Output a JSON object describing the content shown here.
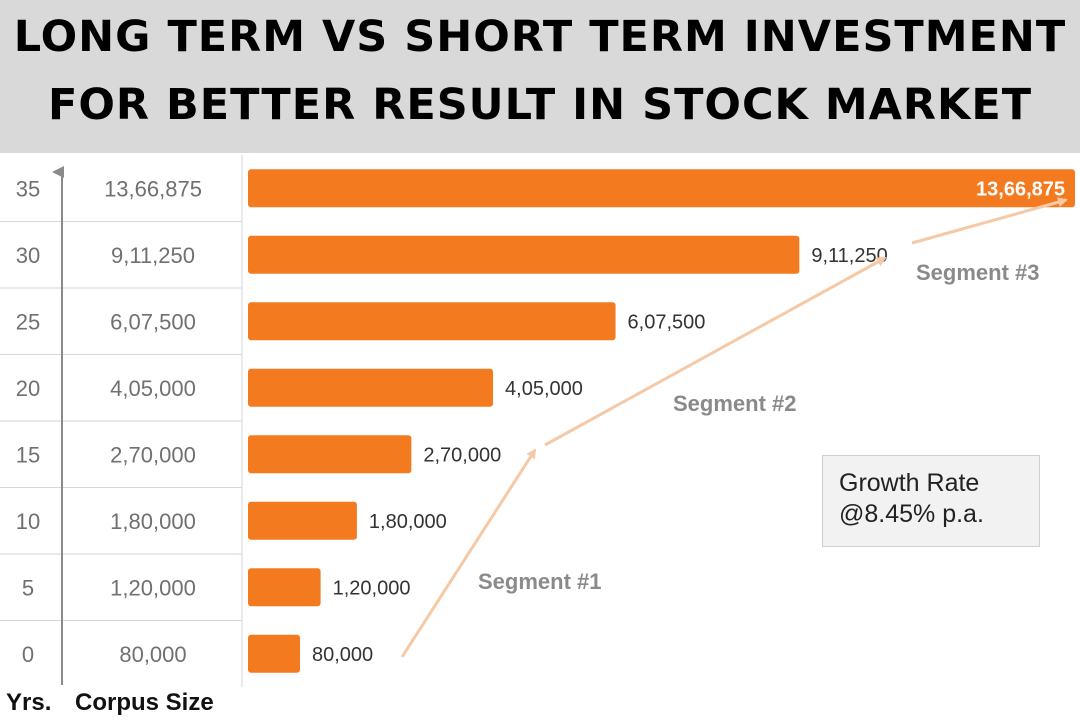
{
  "header": {
    "line1": "LONG TERM VS SHORT TERM INVESTMENT",
    "line2": "FOR BETTER RESULT IN STOCK MARKET"
  },
  "annotation": {
    "line1": "Growth Rate",
    "line2": "@8.45% p.a."
  },
  "colors": {
    "bar": "#f47a20",
    "arrow": "#f6c9a6",
    "banner": "#d9d9d9"
  },
  "chart_data": {
    "type": "bar",
    "orientation": "horizontal",
    "categories": [
      "35",
      "30",
      "25",
      "20",
      "15",
      "10",
      "5",
      "0"
    ],
    "corpus_labels": [
      "13,66,875",
      "9,11,250",
      "6,07,500",
      "4,05,000",
      "2,70,000",
      "1,80,000",
      "1,20,000",
      "80,000"
    ],
    "values": [
      1366875,
      911250,
      607500,
      405000,
      270000,
      180000,
      120000,
      80000
    ],
    "value_labels": [
      "13,66,875",
      "9,11,250",
      "6,07,500",
      "4,05,000",
      "2,70,000",
      "1,80,000",
      "1,20,000",
      "80,000"
    ],
    "xlim": [
      0,
      1366875
    ],
    "xlabel": "Corpus Size",
    "ylabel": "Yrs.",
    "segments": [
      "Segment #1",
      "Segment #2",
      "Segment #3"
    ],
    "grid": true
  }
}
